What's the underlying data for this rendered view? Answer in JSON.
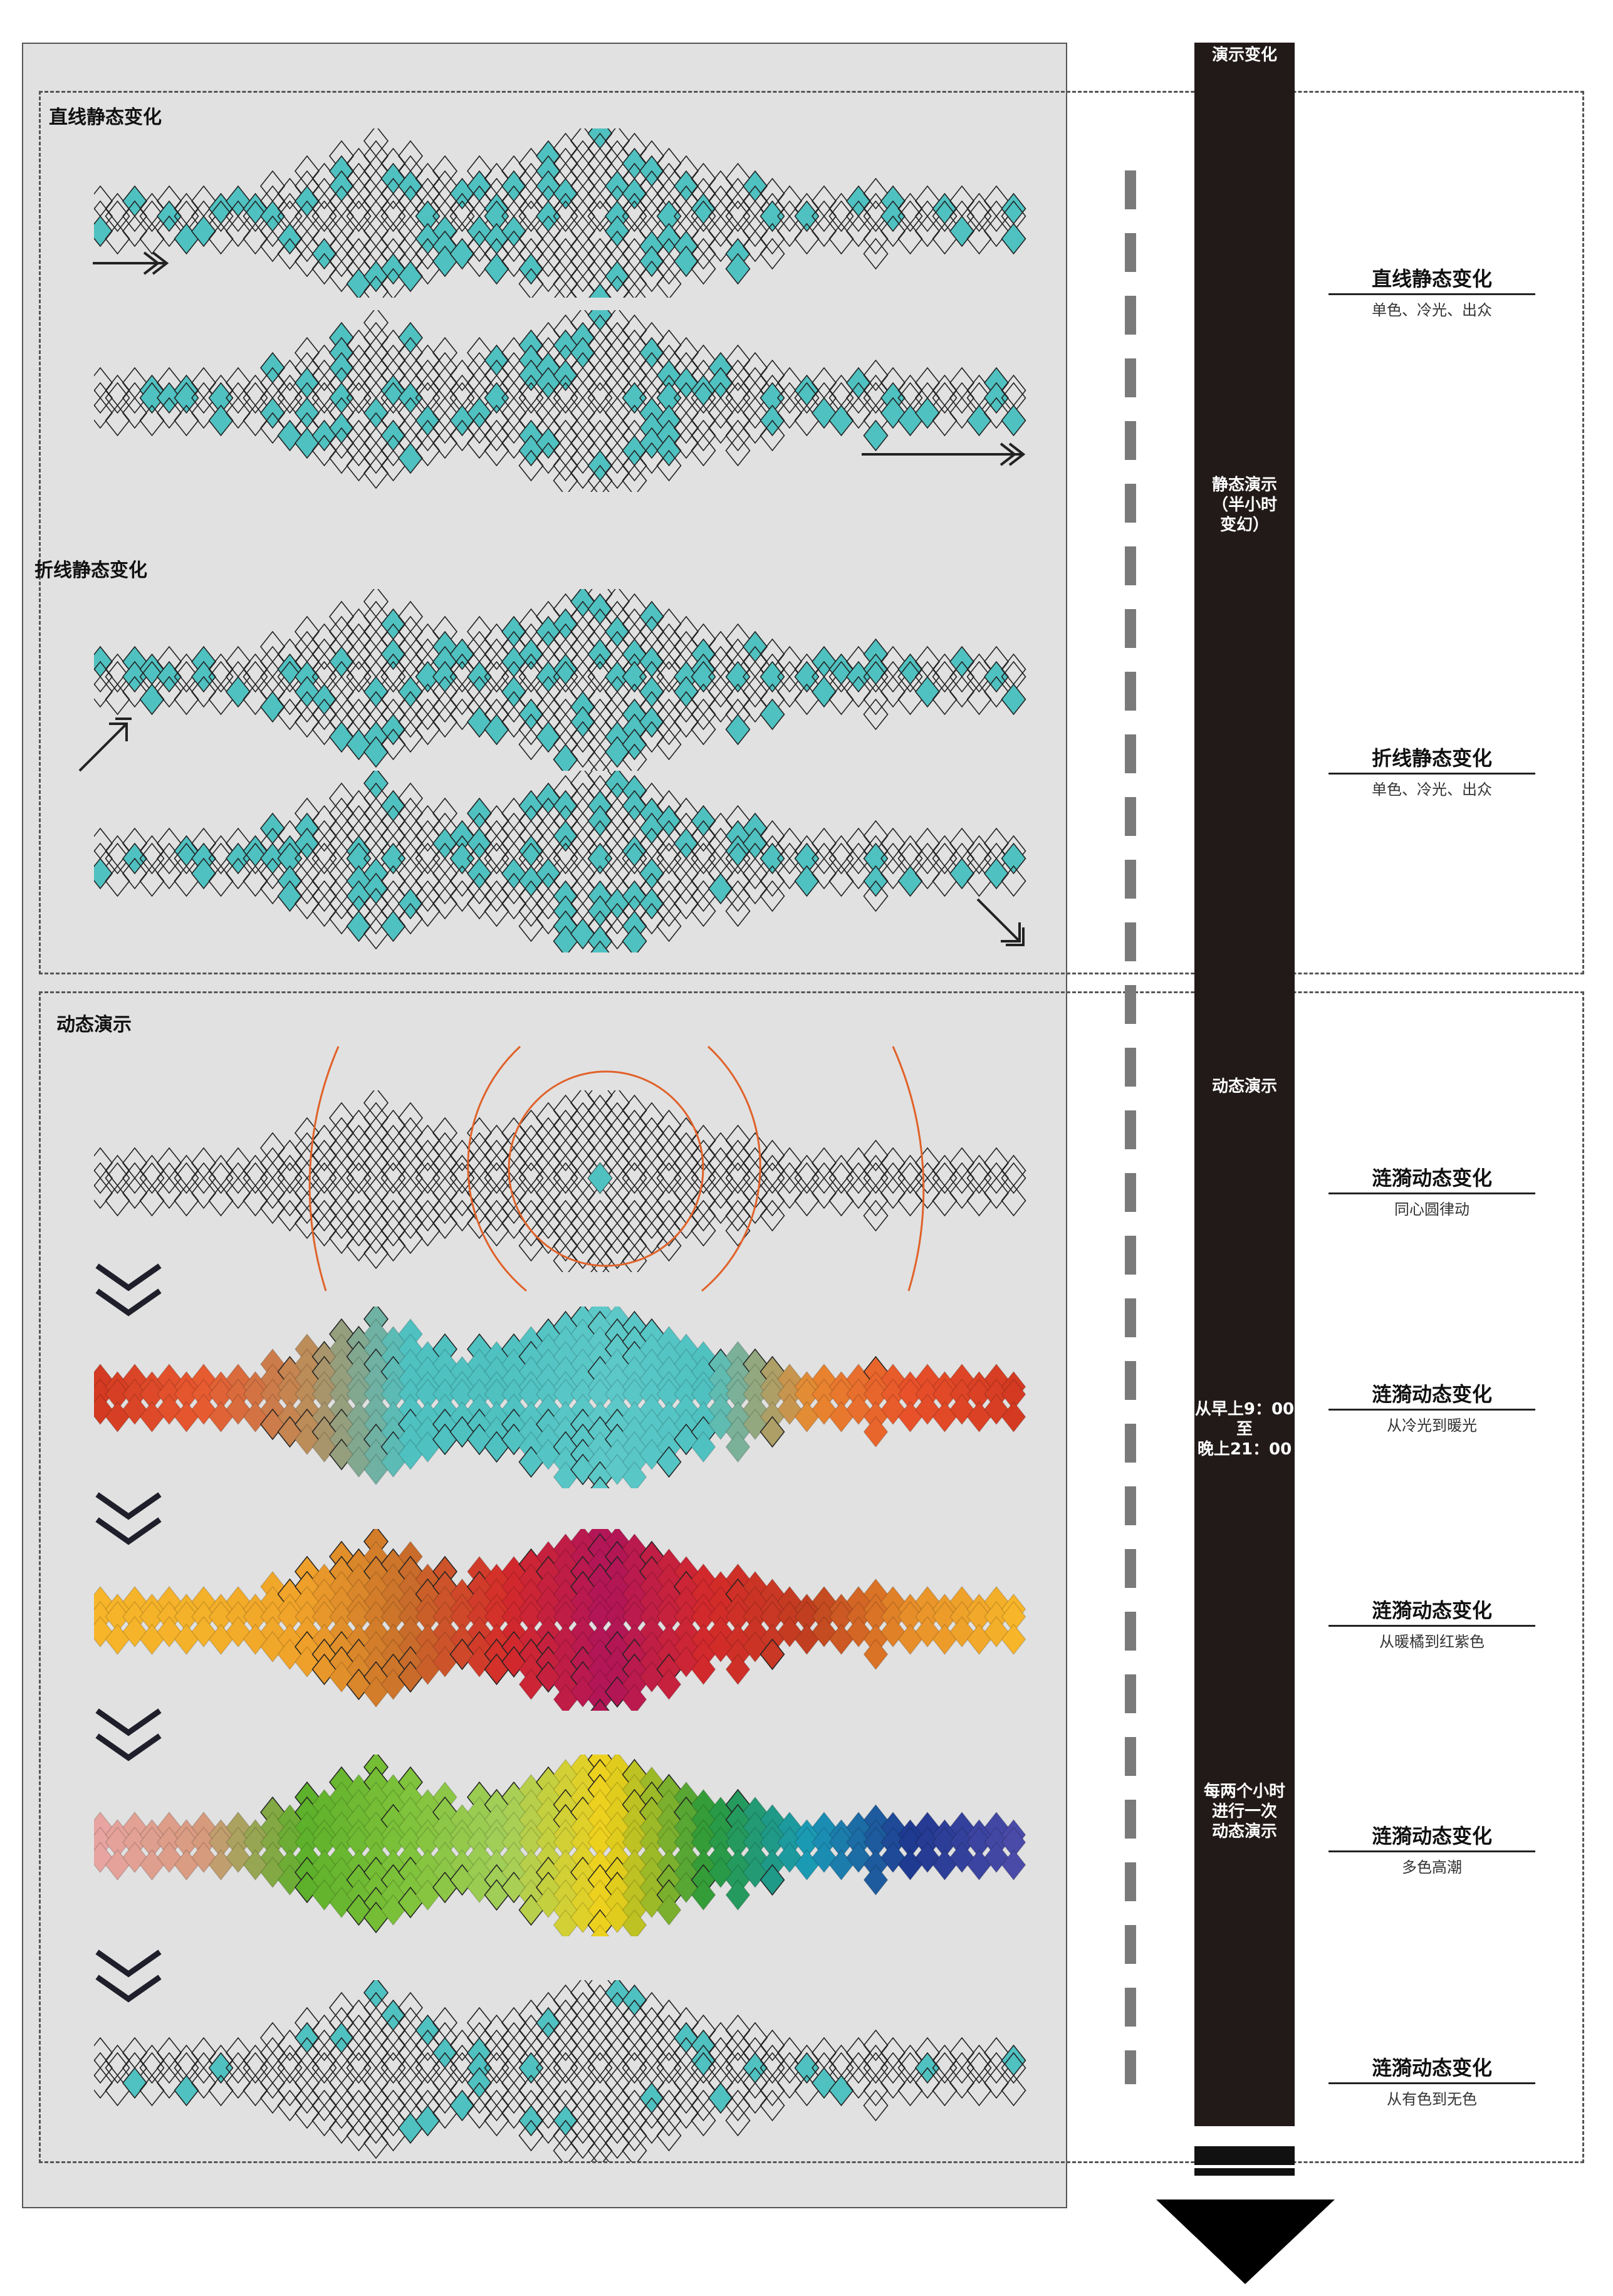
{
  "sections": {
    "straight": "直线静态变化",
    "polyline": "折线静态变化",
    "dynamic": "动态演示"
  },
  "bar": {
    "top_label": "演示变化",
    "static_lines": [
      "静态演示",
      "（半小时",
      "变幻）"
    ],
    "dynamic_label": "动态演示",
    "time_lines": [
      "从早上9：00",
      "至",
      "晚上21：00"
    ],
    "every_lines": [
      "每两个小时",
      "进行一次",
      "动态演示"
    ]
  },
  "right_labels": [
    {
      "title": "直线静态变化",
      "sub": "单色、冷光、出众"
    },
    {
      "title": "折线静态变化",
      "sub": "单色、冷光、出众"
    },
    {
      "title": "涟漪动态变化",
      "sub": "同心圆律动"
    },
    {
      "title": "涟漪动态变化",
      "sub": "从冷光到暖光"
    },
    {
      "title": "涟漪动态变化",
      "sub": "从暖橘到红紫色"
    },
    {
      "title": "涟漪动态变化",
      "sub": "多色高潮"
    },
    {
      "title": "涟漪动态变化",
      "sub": "从有色到无色"
    }
  ],
  "colors": {
    "panel_bg": "#e1e1e1",
    "bar_bg": "#221a19",
    "teal": "#4fc1c1",
    "ring": "#e0622a",
    "outline": "#222222"
  },
  "strips": [
    {
      "id": "straight-1",
      "mode": "outline",
      "teal_ratio": 0.22
    },
    {
      "id": "straight-2",
      "mode": "outline",
      "teal_ratio": 0.18
    },
    {
      "id": "polyline-1",
      "mode": "outline",
      "teal_ratio": 0.24
    },
    {
      "id": "polyline-2",
      "mode": "outline",
      "teal_ratio": 0.2
    },
    {
      "id": "ripple",
      "mode": "outline",
      "teal_ratio": 0.0
    },
    {
      "id": "cold-to-warm",
      "mode": "gradient",
      "stops": [
        "#d43a22",
        "#e85a30",
        "#c08a55",
        "#4fc1c1",
        "#4fc1c1",
        "#5ec9c9",
        "#4fc1c1",
        "#e88a30",
        "#e8502a",
        "#d43a22"
      ]
    },
    {
      "id": "orange-to-purple",
      "mode": "gradient",
      "stops": [
        "#f7b52a",
        "#f4b12a",
        "#f0a22a",
        "#c86f2a",
        "#d42a2a",
        "#b0145a",
        "#d42a2a",
        "#c04020",
        "#e8902a",
        "#f7b52a"
      ]
    },
    {
      "id": "multi-color",
      "mode": "gradient",
      "stops": [
        "#e7a4a0",
        "#d89a7e",
        "#5db02a",
        "#7ec23a",
        "#a4cf5a",
        "#f3d11a",
        "#2a9a3a",
        "#1a9ab8",
        "#1f3890",
        "#4a4aa8"
      ]
    },
    {
      "id": "color-to-none",
      "mode": "outline",
      "teal_ratio": 0.12
    }
  ]
}
